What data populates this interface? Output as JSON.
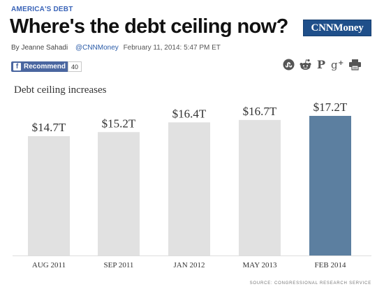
{
  "article": {
    "kicker": "AMERICA'S DEBT",
    "headline": "Where's the debt ceiling now?",
    "logo": "CNNMoney",
    "byline": {
      "author": "By Jeanne Sahadi",
      "handle": "@CNNMoney",
      "date": "February 11, 2014: 5:47 PM ET"
    },
    "recommend": {
      "label": "Recommend",
      "count": "40"
    },
    "share_icons": [
      "stumbleupon-icon",
      "reddit-icon",
      "pinterest-icon",
      "google-plus-icon",
      "print-icon"
    ]
  },
  "chart_data": {
    "type": "bar",
    "title": "Debt ceiling increases",
    "categories": [
      "AUG 2011",
      "SEP 2011",
      "JAN 2012",
      "MAY 2013",
      "FEB 2014"
    ],
    "values": [
      14.7,
      15.2,
      16.4,
      16.7,
      17.2
    ],
    "value_labels": [
      "$14.7T",
      "$15.2T",
      "$16.4T",
      "$16.7T",
      "$17.2T"
    ],
    "ylim": [
      0,
      17.2
    ],
    "grid": false,
    "colors": {
      "bar": "#e1e1e1",
      "highlight": "#5c7fa0",
      "axis": "#dddddd"
    },
    "highlight_index": 4,
    "source": "SOURCE: CONGRESSIONAL RESEARCH SERVICE"
  }
}
